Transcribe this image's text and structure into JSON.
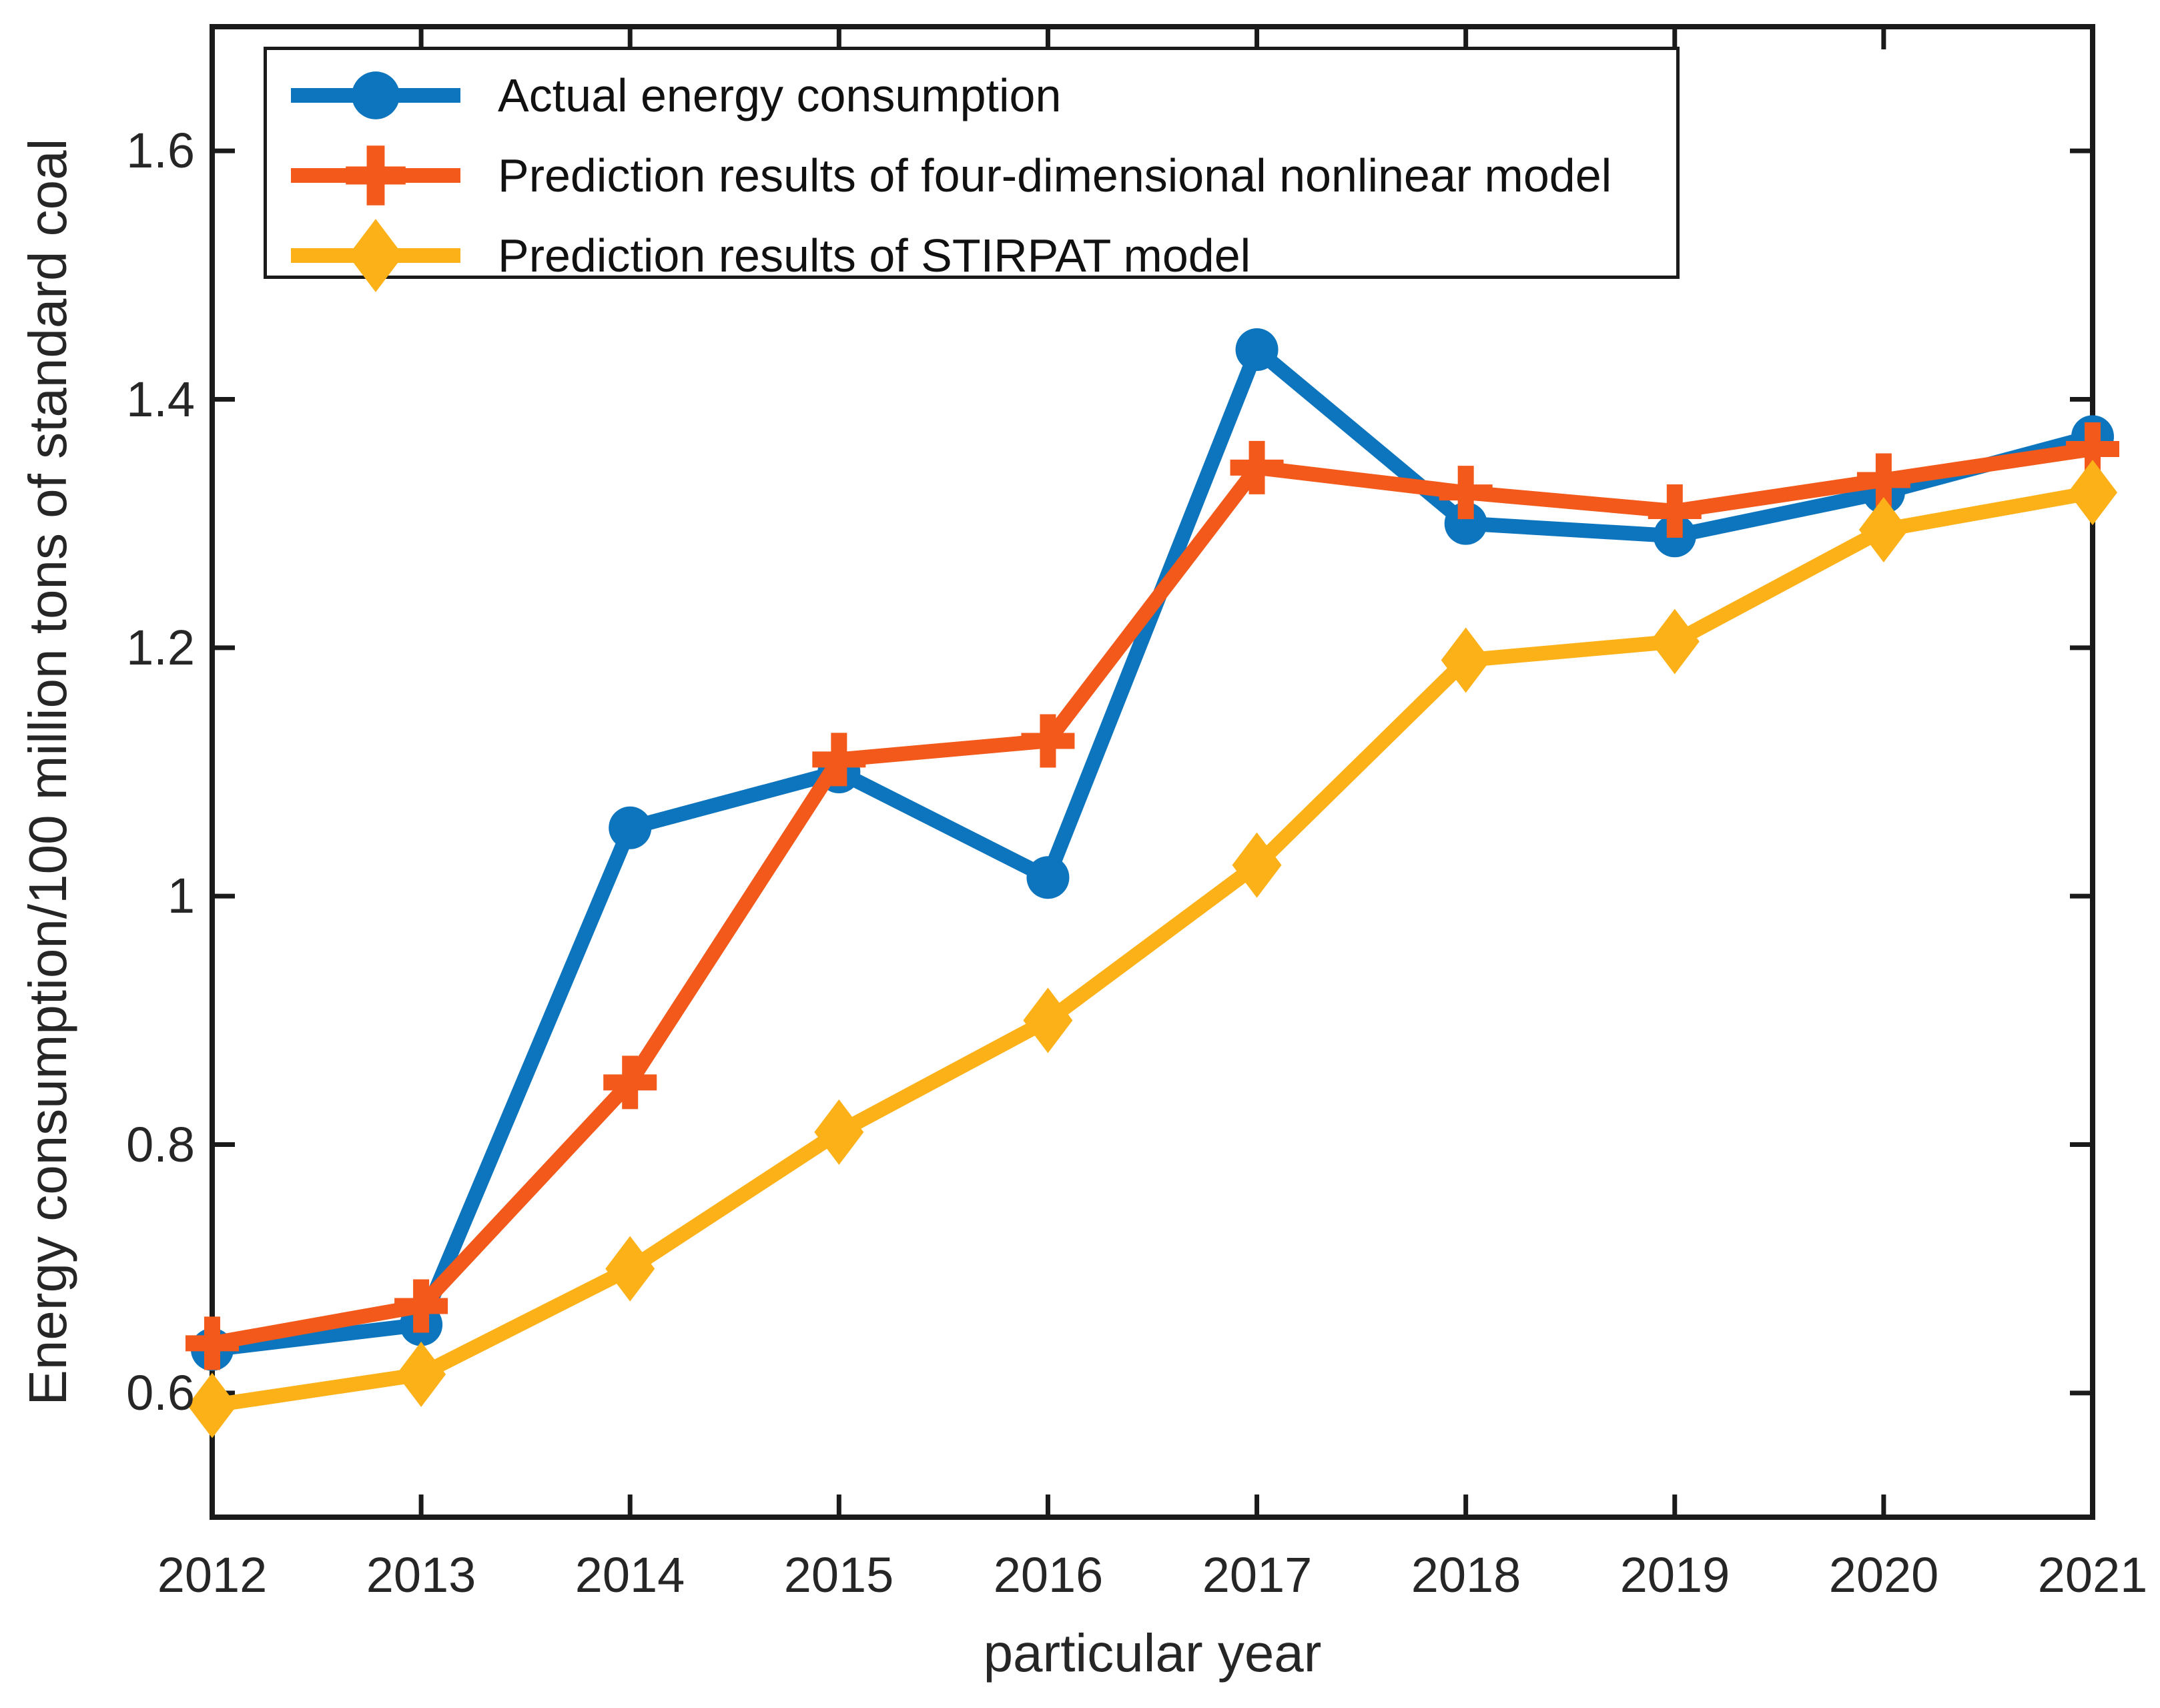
{
  "figure": {
    "xlabel": "particular year",
    "ylabel": "Energy consumption/100 million tons of standard coal",
    "background_color": "#ffffff",
    "axis_color": "#1a1a1a",
    "tick_text_color": "#262626"
  },
  "chart_data": {
    "type": "line",
    "x": [
      2012,
      2013,
      2014,
      2015,
      2016,
      2017,
      2018,
      2019,
      2020,
      2021
    ],
    "x_tick_labels": [
      "2012",
      "2013",
      "2014",
      "2015",
      "2016",
      "2017",
      "2018",
      "2019",
      "2020",
      "2021"
    ],
    "y_ticks": [
      0.6,
      0.8,
      1.0,
      1.2,
      1.4,
      1.6
    ],
    "y_tick_labels": [
      "0.6",
      "0.8",
      "1",
      "1.2",
      "1.4",
      "1.6"
    ],
    "xlim": [
      2012,
      2021
    ],
    "ylim": [
      0.5,
      1.7
    ],
    "grid": false,
    "legend_position": "inside-top-left",
    "title": "",
    "xlabel": "particular year",
    "ylabel": "Energy consumption/100 million tons of standard coal",
    "series": [
      {
        "name": "Actual energy consumption",
        "marker": "circle",
        "color": "#0D74BE",
        "values": [
          0.635,
          0.655,
          1.055,
          1.1,
          1.015,
          1.44,
          1.3,
          1.29,
          1.325,
          1.37
        ]
      },
      {
        "name": "Prediction results of four-dimensional nonlinear model",
        "marker": "plus",
        "color": "#F2591B",
        "values": [
          0.64,
          0.67,
          0.85,
          1.11,
          1.125,
          1.345,
          1.325,
          1.31,
          1.335,
          1.36
        ]
      },
      {
        "name": "Prediction results of STIRPAT model",
        "marker": "diamond",
        "color": "#FBB117",
        "values": [
          0.59,
          0.615,
          0.7,
          0.81,
          0.9,
          1.025,
          1.19,
          1.205,
          1.295,
          1.325
        ]
      }
    ]
  }
}
